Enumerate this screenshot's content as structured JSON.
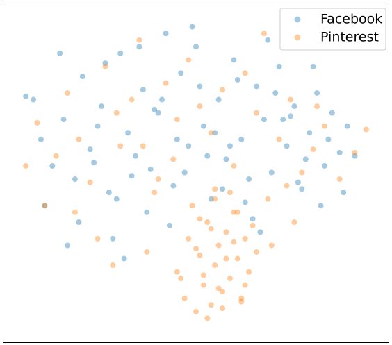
{
  "chart_data": {
    "type": "scatter",
    "xlim": [
      0,
      100
    ],
    "ylim": [
      0,
      100
    ],
    "legend": "upper right",
    "alpha": 0.4,
    "series": [
      {
        "name": "Facebook",
        "color": "#1f77b4",
        "x": [
          5,
          7,
          9,
          12,
          15,
          18,
          20,
          22,
          25,
          27,
          30,
          32,
          34,
          36,
          38,
          40,
          42,
          44,
          46,
          48,
          50,
          52,
          54,
          56,
          58,
          60,
          62,
          64,
          66,
          68,
          70,
          72,
          74,
          76,
          78,
          80,
          82,
          84,
          86,
          88,
          90,
          92,
          10,
          14,
          19,
          24,
          28,
          33,
          37,
          41,
          45,
          49,
          53,
          57,
          61,
          65,
          69,
          73,
          77,
          81,
          85,
          89,
          16,
          23,
          29,
          35,
          43,
          51,
          59,
          67,
          75,
          83,
          26,
          31,
          39,
          47,
          55,
          63,
          71,
          79
        ],
        "values": [
          73,
          72,
          60,
          52,
          66,
          48,
          79,
          57,
          70,
          44,
          86,
          62,
          55,
          75,
          51,
          68,
          92,
          46,
          80,
          58,
          88,
          64,
          42,
          72,
          54,
          84,
          60,
          48,
          76,
          66,
          50,
          82,
          58,
          70,
          45,
          62,
          74,
          52,
          68,
          56,
          64,
          55,
          40,
          86,
          35,
          64,
          30,
          49,
          38,
          72,
          60,
          94,
          55,
          45,
          78,
          36,
          90,
          66,
          47,
          82,
          60,
          44,
          28,
          53,
          42,
          88,
          34,
          76,
          58,
          32,
          67,
          40,
          83,
          24,
          69,
          50,
          62,
          41,
          74,
          54
        ]
      },
      {
        "name": "Pinterest",
        "color": "#ff7f0e",
        "x": [
          45,
          47,
          48,
          50,
          51,
          52,
          53,
          54,
          55,
          56,
          57,
          58,
          59,
          60,
          61,
          62,
          63,
          64,
          65,
          66,
          49,
          51,
          53,
          55,
          57,
          59,
          61,
          63,
          50,
          52,
          54,
          56,
          58,
          60,
          62,
          5,
          8,
          10,
          13,
          16,
          19,
          22,
          26,
          29,
          33,
          36,
          39,
          42,
          45,
          48,
          51,
          54,
          57,
          60,
          63,
          66,
          69,
          72,
          75,
          78,
          81,
          84,
          88,
          92,
          95,
          28,
          37,
          46,
          55,
          70,
          76,
          18,
          24,
          30,
          40,
          35,
          44,
          68,
          74,
          82
        ],
        "values": [
          20,
          12,
          30,
          8,
          25,
          16,
          35,
          10,
          22,
          28,
          14,
          32,
          18,
          38,
          24,
          12,
          30,
          20,
          34,
          26,
          40,
          36,
          6,
          42,
          9,
          44,
          38,
          16,
          27,
          19,
          33,
          15,
          24,
          29,
          11,
          52,
          65,
          40,
          55,
          74,
          60,
          47,
          82,
          68,
          72,
          58,
          44,
          77,
          66,
          84,
          70,
          62,
          75,
          52,
          80,
          68,
          42,
          60,
          72,
          50,
          57,
          64,
          48,
          56,
          63,
          22,
          26,
          18,
          45,
          28,
          35,
          38,
          30,
          58,
          48,
          90,
          54,
          92,
          46,
          70
        ]
      }
    ]
  }
}
